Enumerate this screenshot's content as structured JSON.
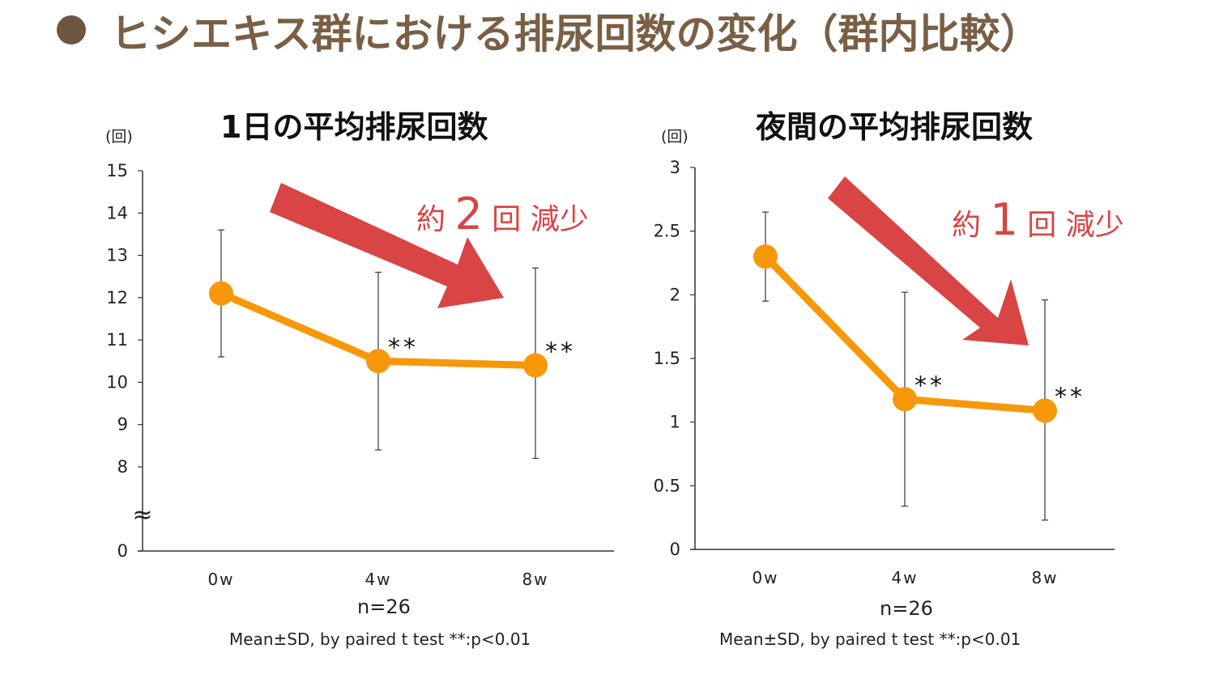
{
  "slide_title": "ヒシエキス群における排尿回数の変化（群内比較）",
  "colors": {
    "title": "#7a5f45",
    "bullet": "#6e5540",
    "line": "#f7980a",
    "arrow": "#d94444",
    "annotation": "#d94444"
  },
  "chart_data": [
    {
      "type": "line",
      "title": "1日の平均排尿回数",
      "ylabel": "(回)",
      "categories": [
        "0w",
        "4w",
        "8w"
      ],
      "values": [
        12.1,
        10.5,
        10.4
      ],
      "error_upper": [
        13.6,
        12.6,
        12.7
      ],
      "error_lower": [
        10.6,
        8.4,
        8.2
      ],
      "significance": [
        "",
        "**",
        "**"
      ],
      "yticks": [
        "15",
        "14",
        "13",
        "12",
        "11",
        "10",
        "9",
        "8",
        "0"
      ],
      "ylim": [
        8,
        15
      ],
      "axis_break": "≈",
      "annotation": {
        "pre": "約",
        "num": "2",
        "post": "回 減少"
      },
      "n_label": "n=26",
      "footnote": "Mean±SD, by paired t test **:p<0.01",
      "grid": false
    },
    {
      "type": "line",
      "title": "夜間の平均排尿回数",
      "ylabel": "(回)",
      "categories": [
        "0w",
        "4w",
        "8w"
      ],
      "values": [
        2.3,
        1.18,
        1.09
      ],
      "error_upper": [
        2.65,
        2.02,
        1.96
      ],
      "error_lower": [
        1.95,
        0.34,
        0.23
      ],
      "significance": [
        "",
        "**",
        "**"
      ],
      "yticks": [
        "3",
        "2.5",
        "2",
        "1.5",
        "1",
        "0.5",
        "0"
      ],
      "ylim": [
        0,
        3
      ],
      "annotation": {
        "pre": "約",
        "num": "1",
        "post": "回 減少"
      },
      "n_label": "n=26",
      "footnote": "Mean±SD, by paired t test **:p<0.01",
      "grid": false
    }
  ]
}
